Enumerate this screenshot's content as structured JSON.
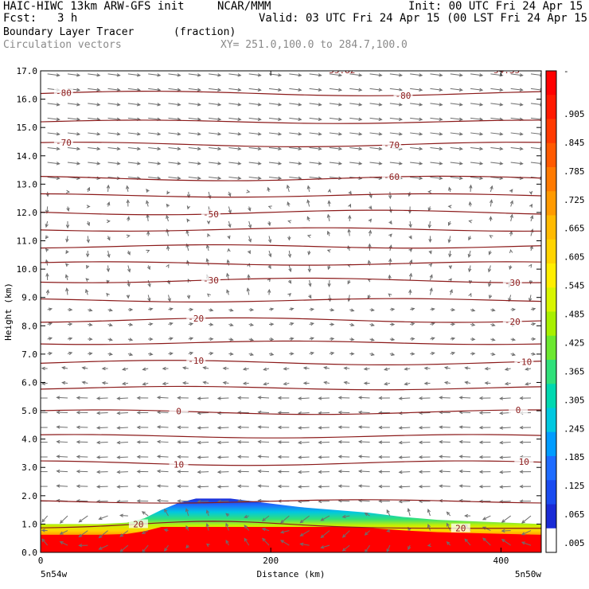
{
  "header": {
    "title_left": "HAIC-HIWC 13km ARW-GFS init",
    "title_center": "NCAR/MMM",
    "init": "Init: 00 UTC Fri 24 Apr 15",
    "fcst_label": "Fcst:",
    "fcst_value": "3 h",
    "valid": "Valid: 03 UTC Fri 24 Apr 15 (00 LST Fri 24 Apr 15)",
    "field_name": "Boundary Layer Tracer",
    "field_units": "(fraction)",
    "vector_name": "Circulation vectors",
    "cross_section": "XY= 251.0,100.0 to 284.7,100.0"
  },
  "chart_data": {
    "type": "heatmap",
    "xlabel": "Distance (km)",
    "ylabel": "Height (km)",
    "xlim": [
      0,
      435
    ],
    "ylim": [
      0,
      17
    ],
    "x_ticks": [
      0,
      200,
      400
    ],
    "y_ticks": [
      "0.0",
      "1.0",
      "2.0",
      "3.0",
      "4.0",
      "5.0",
      "6.0",
      "7.0",
      "8.0",
      "9.0",
      "10.0",
      "11.0",
      "12.0",
      "13.0",
      "14.0",
      "15.0",
      "16.0",
      "17.0"
    ],
    "x_endpoints": {
      "left": "5n54w",
      "right": "5n50w"
    },
    "colorbar_labels": [
      "-",
      ".905",
      ".845",
      ".785",
      ".725",
      ".665",
      ".605",
      ".545",
      ".485",
      ".425",
      ".365",
      ".305",
      ".245",
      ".185",
      ".125",
      ".065",
      ".005"
    ],
    "tracer_top_km": [
      [
        0,
        1.0
      ],
      [
        50,
        1.0
      ],
      [
        75,
        1.05
      ],
      [
        90,
        1.2
      ],
      [
        105,
        1.5
      ],
      [
        120,
        1.75
      ],
      [
        135,
        1.9
      ],
      [
        165,
        1.9
      ],
      [
        195,
        1.75
      ],
      [
        225,
        1.6
      ],
      [
        255,
        1.5
      ],
      [
        285,
        1.4
      ],
      [
        315,
        1.25
      ],
      [
        345,
        1.15
      ],
      [
        375,
        1.1
      ],
      [
        405,
        1.05
      ],
      [
        435,
        1.0
      ]
    ],
    "contours_c": [
      {
        "label": "-80",
        "height_km": 16.2,
        "label_x": [
          20,
          315
        ]
      },
      {
        "label": "-70",
        "height_km": 14.4,
        "label_x": [
          20,
          305
        ]
      },
      {
        "label": "-60",
        "height_km": 13.2,
        "label_x": [
          305
        ]
      },
      {
        "label": "-50",
        "height_km": 12.0,
        "label_x": [
          148
        ]
      },
      {
        "label": "-30",
        "height_km": 9.6,
        "label_x": [
          148,
          410
        ]
      },
      {
        "label": "-20",
        "height_km": 8.2,
        "label_x": [
          135,
          410
        ]
      },
      {
        "label": "-10",
        "height_km": 6.7,
        "label_x": [
          135,
          420
        ]
      },
      {
        "label": "0",
        "height_km": 4.95,
        "label_x": [
          120,
          415
        ]
      },
      {
        "label": "10",
        "height_km": 3.15,
        "label_x": [
          120,
          420
        ]
      },
      {
        "label": "20",
        "height_km": 0.85,
        "label_x": [
          85,
          365
        ]
      }
    ],
    "top_labels": [
      "55.82",
      "54.35"
    ],
    "vectors": "westerly aloft above 6 km, easterly below 5 km, weak/variable between 9 and 13 km"
  }
}
